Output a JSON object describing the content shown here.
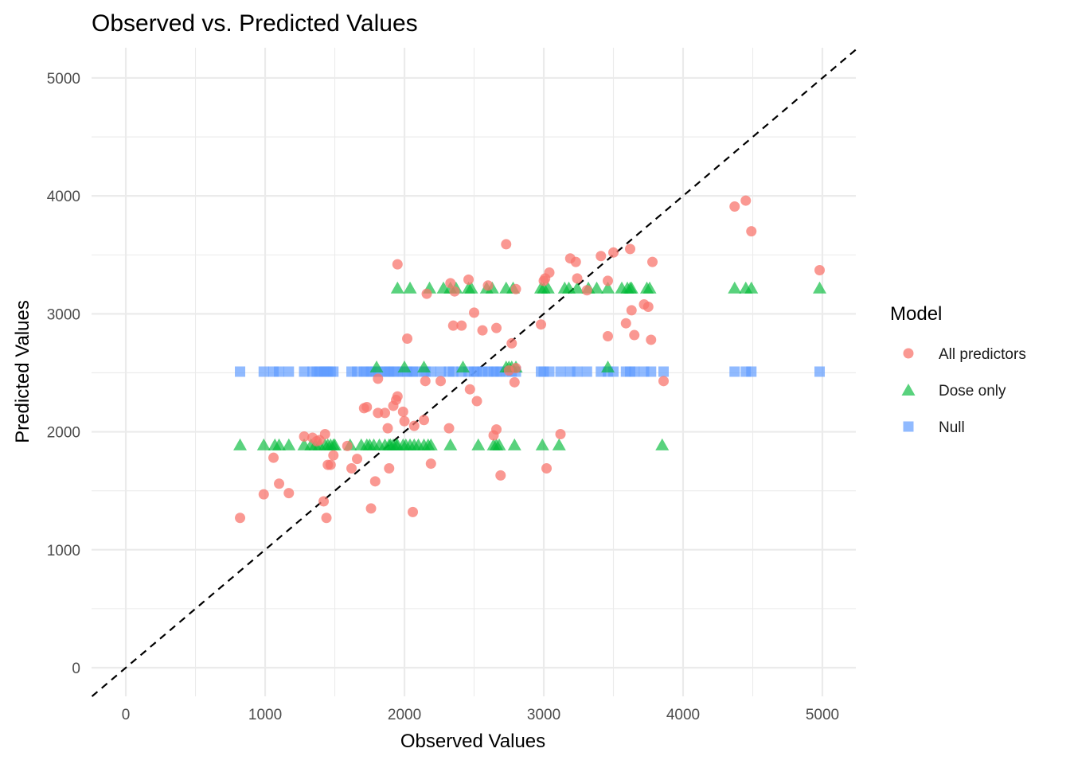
{
  "chart_data": {
    "type": "scatter",
    "title": "Observed vs. Predicted Values",
    "xlabel": "Observed Values",
    "ylabel": "Predicted Values",
    "xlim": [
      -246,
      5240
    ],
    "ylim": [
      -243,
      5256
    ],
    "xticks": [
      0,
      1000,
      2000,
      3000,
      4000,
      5000
    ],
    "yticks": [
      0,
      1000,
      2000,
      3000,
      4000,
      5000
    ],
    "xtick_labels": [
      "0",
      "1000",
      "2000",
      "3000",
      "4000",
      "5000"
    ],
    "ytick_labels": [
      "0",
      "1000",
      "2000",
      "3000",
      "4000",
      "5000"
    ],
    "grid": true,
    "reference_line": "y = x (dashed)",
    "legend": {
      "title": "Model",
      "position": "right"
    },
    "series": [
      {
        "name": "All predictors",
        "shape": "circle",
        "color": "#F8766D",
        "points": [
          [
            820,
            1270
          ],
          [
            990,
            1470
          ],
          [
            1060,
            1780
          ],
          [
            1100,
            1560
          ],
          [
            1170,
            1480
          ],
          [
            1280,
            1960
          ],
          [
            1340,
            1950
          ],
          [
            1370,
            1920
          ],
          [
            1390,
            1930
          ],
          [
            1420,
            1410
          ],
          [
            1430,
            1980
          ],
          [
            1440,
            1270
          ],
          [
            1450,
            1720
          ],
          [
            1470,
            1720
          ],
          [
            1490,
            1800
          ],
          [
            1590,
            1880
          ],
          [
            1620,
            1690
          ],
          [
            1660,
            1770
          ],
          [
            1710,
            2200
          ],
          [
            1730,
            2210
          ],
          [
            1760,
            1350
          ],
          [
            1790,
            1580
          ],
          [
            1810,
            2450
          ],
          [
            1810,
            2160
          ],
          [
            1860,
            2160
          ],
          [
            1880,
            2030
          ],
          [
            1890,
            1690
          ],
          [
            1920,
            2220
          ],
          [
            1940,
            2270
          ],
          [
            1950,
            2300
          ],
          [
            1950,
            3420
          ],
          [
            1990,
            2170
          ],
          [
            2000,
            2090
          ],
          [
            2020,
            2790
          ],
          [
            2060,
            1320
          ],
          [
            2070,
            2050
          ],
          [
            2140,
            2100
          ],
          [
            2150,
            2430
          ],
          [
            2160,
            3170
          ],
          [
            2190,
            1730
          ],
          [
            2260,
            2430
          ],
          [
            2320,
            2030
          ],
          [
            2330,
            3260
          ],
          [
            2350,
            2900
          ],
          [
            2360,
            3190
          ],
          [
            2410,
            2900
          ],
          [
            2460,
            3290
          ],
          [
            2470,
            2360
          ],
          [
            2500,
            3010
          ],
          [
            2520,
            2260
          ],
          [
            2560,
            2860
          ],
          [
            2600,
            3240
          ],
          [
            2640,
            1970
          ],
          [
            2660,
            2020
          ],
          [
            2660,
            2880
          ],
          [
            2690,
            1630
          ],
          [
            2730,
            3590
          ],
          [
            2750,
            2520
          ],
          [
            2770,
            2750
          ],
          [
            2790,
            2420
          ],
          [
            2800,
            3210
          ],
          [
            2800,
            2540
          ],
          [
            2980,
            2910
          ],
          [
            3000,
            3280
          ],
          [
            3010,
            3300
          ],
          [
            3020,
            1690
          ],
          [
            3040,
            3350
          ],
          [
            3120,
            1980
          ],
          [
            3190,
            3470
          ],
          [
            3230,
            3440
          ],
          [
            3240,
            3300
          ],
          [
            3310,
            3200
          ],
          [
            3410,
            3490
          ],
          [
            3460,
            3280
          ],
          [
            3460,
            2810
          ],
          [
            3500,
            3520
          ],
          [
            3590,
            2920
          ],
          [
            3620,
            3550
          ],
          [
            3630,
            3030
          ],
          [
            3650,
            2820
          ],
          [
            3720,
            3080
          ],
          [
            3750,
            3060
          ],
          [
            3770,
            2780
          ],
          [
            3780,
            3440
          ],
          [
            3860,
            2430
          ],
          [
            4370,
            3910
          ],
          [
            4450,
            3960
          ],
          [
            4490,
            3700
          ],
          [
            4980,
            3370
          ]
        ]
      },
      {
        "name": "Dose only",
        "shape": "triangle",
        "color": "#00BA38",
        "groups": [
          {
            "y": 1890,
            "x": [
              820,
              990,
              1070,
              1100,
              1170,
              1280,
              1330,
              1360,
              1390,
              1430,
              1450,
              1470,
              1490,
              1500,
              1610,
              1690,
              1730,
              1750,
              1780,
              1820,
              1860,
              1890,
              1900,
              1920,
              1940,
              1950,
              1990,
              2010,
              2040,
              2070,
              2100,
              2140,
              2170,
              2190,
              2330,
              2530,
              2640,
              2660,
              2680,
              2790,
              2990,
              3110,
              3850
            ]
          },
          {
            "y": 2550,
            "x": [
              1800,
              2000,
              2140,
              2420,
              2730,
              2750,
              2770,
              2800,
              3460
            ]
          },
          {
            "y": 3220,
            "x": [
              1950,
              2040,
              2180,
              2280,
              2330,
              2370,
              2460,
              2480,
              2590,
              2630,
              2730,
              2780,
              2980,
              3000,
              3030,
              3150,
              3180,
              3240,
              3320,
              3380,
              3460,
              3560,
              3600,
              3620,
              3630,
              3740,
              3760,
              4370,
              4450,
              4490,
              4980
            ]
          }
        ]
      },
      {
        "name": "Null",
        "shape": "square",
        "color": "#619CFF",
        "y": 2510,
        "x": [
          820,
          990,
          1060,
          1100,
          1170,
          1280,
          1340,
          1370,
          1390,
          1420,
          1430,
          1440,
          1450,
          1470,
          1490,
          1620,
          1660,
          1710,
          1730,
          1760,
          1790,
          1810,
          1860,
          1880,
          1890,
          1920,
          1950,
          1990,
          2020,
          2060,
          2070,
          2140,
          2150,
          2190,
          2260,
          2320,
          2350,
          2410,
          2460,
          2500,
          2520,
          2560,
          2600,
          2640,
          2660,
          2690,
          2730,
          2770,
          2800,
          2980,
          3000,
          3040,
          3120,
          3190,
          3240,
          3310,
          3410,
          3460,
          3500,
          3590,
          3620,
          3650,
          3720,
          3770,
          3860,
          4370,
          4450,
          4490,
          4980
        ]
      }
    ]
  }
}
